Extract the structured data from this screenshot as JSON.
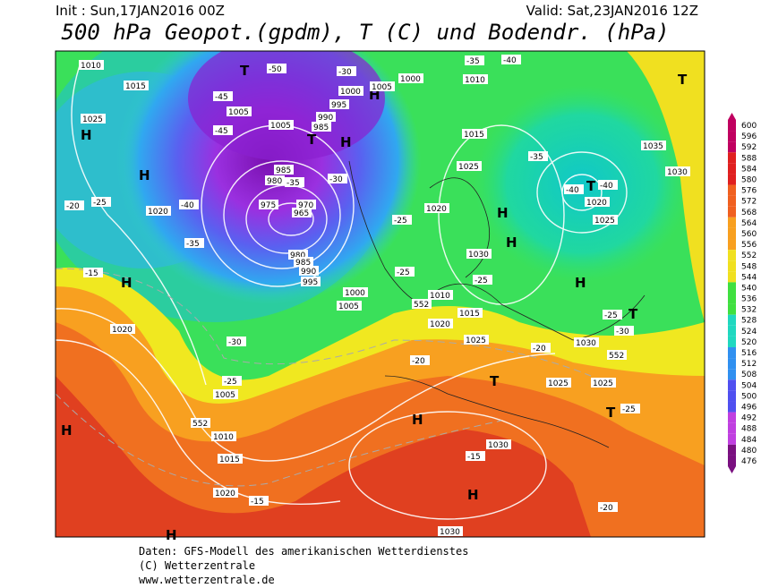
{
  "header": {
    "init": "Init : Sun,17JAN2016 00Z",
    "valid": "Valid: Sat,23JAN2016 12Z",
    "title": "500 hPa Geopot.(gpdm), T (C) und Bodendr. (hPa)"
  },
  "colorbar": {
    "labels": [
      600,
      596,
      592,
      588,
      584,
      580,
      576,
      572,
      568,
      564,
      560,
      556,
      552,
      548,
      544,
      540,
      536,
      532,
      528,
      524,
      520,
      516,
      512,
      508,
      504,
      500,
      496,
      492,
      488,
      484,
      480,
      476
    ]
  },
  "map_labels": [
    "H",
    "H",
    "H",
    "H",
    "H",
    "H",
    "H",
    "H",
    "H",
    "H",
    "H",
    "H",
    "T",
    "T",
    "T",
    "T",
    "T",
    "T",
    "T",
    "1010",
    "1015",
    "1025",
    "1020",
    "1005",
    "1005",
    "1000",
    "995",
    "990",
    "985",
    "985",
    "980",
    "975",
    "970",
    "965",
    "980",
    "985",
    "990",
    "995",
    "1000",
    "1005",
    "1000",
    "1005",
    "1015",
    "1025",
    "1020",
    "1030",
    "1010",
    "1015",
    "1020",
    "1025",
    "1030",
    "1025",
    "1025",
    "1020",
    "1025",
    "1035",
    "1030",
    "1020",
    "1005",
    "1010",
    "1015",
    "1020",
    "1030",
    "1030",
    "1010",
    "-50",
    "-45",
    "-45",
    "-35",
    "-30",
    "-35",
    "-30",
    "-25",
    "-20",
    "-15",
    "-15",
    "-20",
    "-25",
    "-25",
    "-25",
    "-25",
    "-30",
    "-25",
    "-35",
    "-40",
    "-40",
    "-40",
    "-35",
    "-40",
    "-25",
    "-20",
    "-15",
    "-20",
    "-30",
    "552",
    "552",
    "552"
  ],
  "footer": {
    "lines": [
      "Daten: GFS-Modell des amerikanischen Wetterdienstes",
      "(C) Wetterzentrale",
      "www.wetterzentrale.de"
    ]
  }
}
